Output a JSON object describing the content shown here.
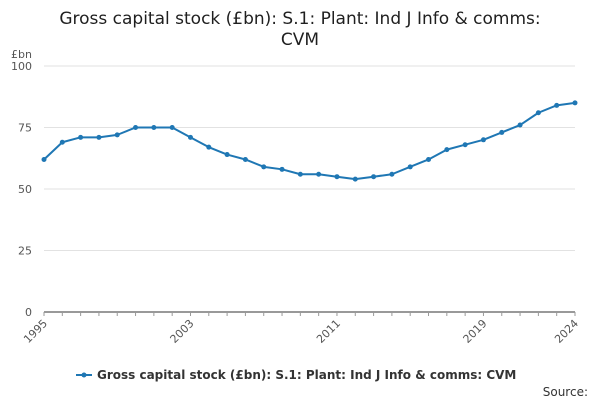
{
  "chart_data": {
    "type": "line",
    "title_lines": [
      "Gross capital stock (£bn): S.1: Plant: Ind J Info & comms:",
      "CVM"
    ],
    "y_unit": "£bn",
    "ylim": [
      0,
      100
    ],
    "y_ticks": [
      "0",
      "25",
      "50",
      "75",
      "100"
    ],
    "xlim": [
      1995,
      2024
    ],
    "x_ticks": [
      "1995",
      "2003",
      "2011",
      "2019",
      "2024"
    ],
    "grid": true,
    "legend_position": "bottom",
    "source_label": "Source:",
    "series": [
      {
        "name": "Gross capital stock (£bn): S.1: Plant: Ind J Info & comms: CVM",
        "color": "#1f77b4",
        "x": [
          1995,
          1996,
          1997,
          1998,
          1999,
          2000,
          2001,
          2002,
          2003,
          2004,
          2005,
          2006,
          2007,
          2008,
          2009,
          2010,
          2011,
          2012,
          2013,
          2014,
          2015,
          2016,
          2017,
          2018,
          2019,
          2020,
          2021,
          2022,
          2023,
          2024
        ],
        "values": [
          62,
          69,
          71,
          71,
          72,
          75,
          75,
          75,
          71,
          67,
          64,
          62,
          59,
          58,
          56,
          56,
          55,
          54,
          55,
          56,
          59,
          62,
          66,
          68,
          70,
          73,
          76,
          81,
          84,
          85
        ]
      }
    ]
  }
}
